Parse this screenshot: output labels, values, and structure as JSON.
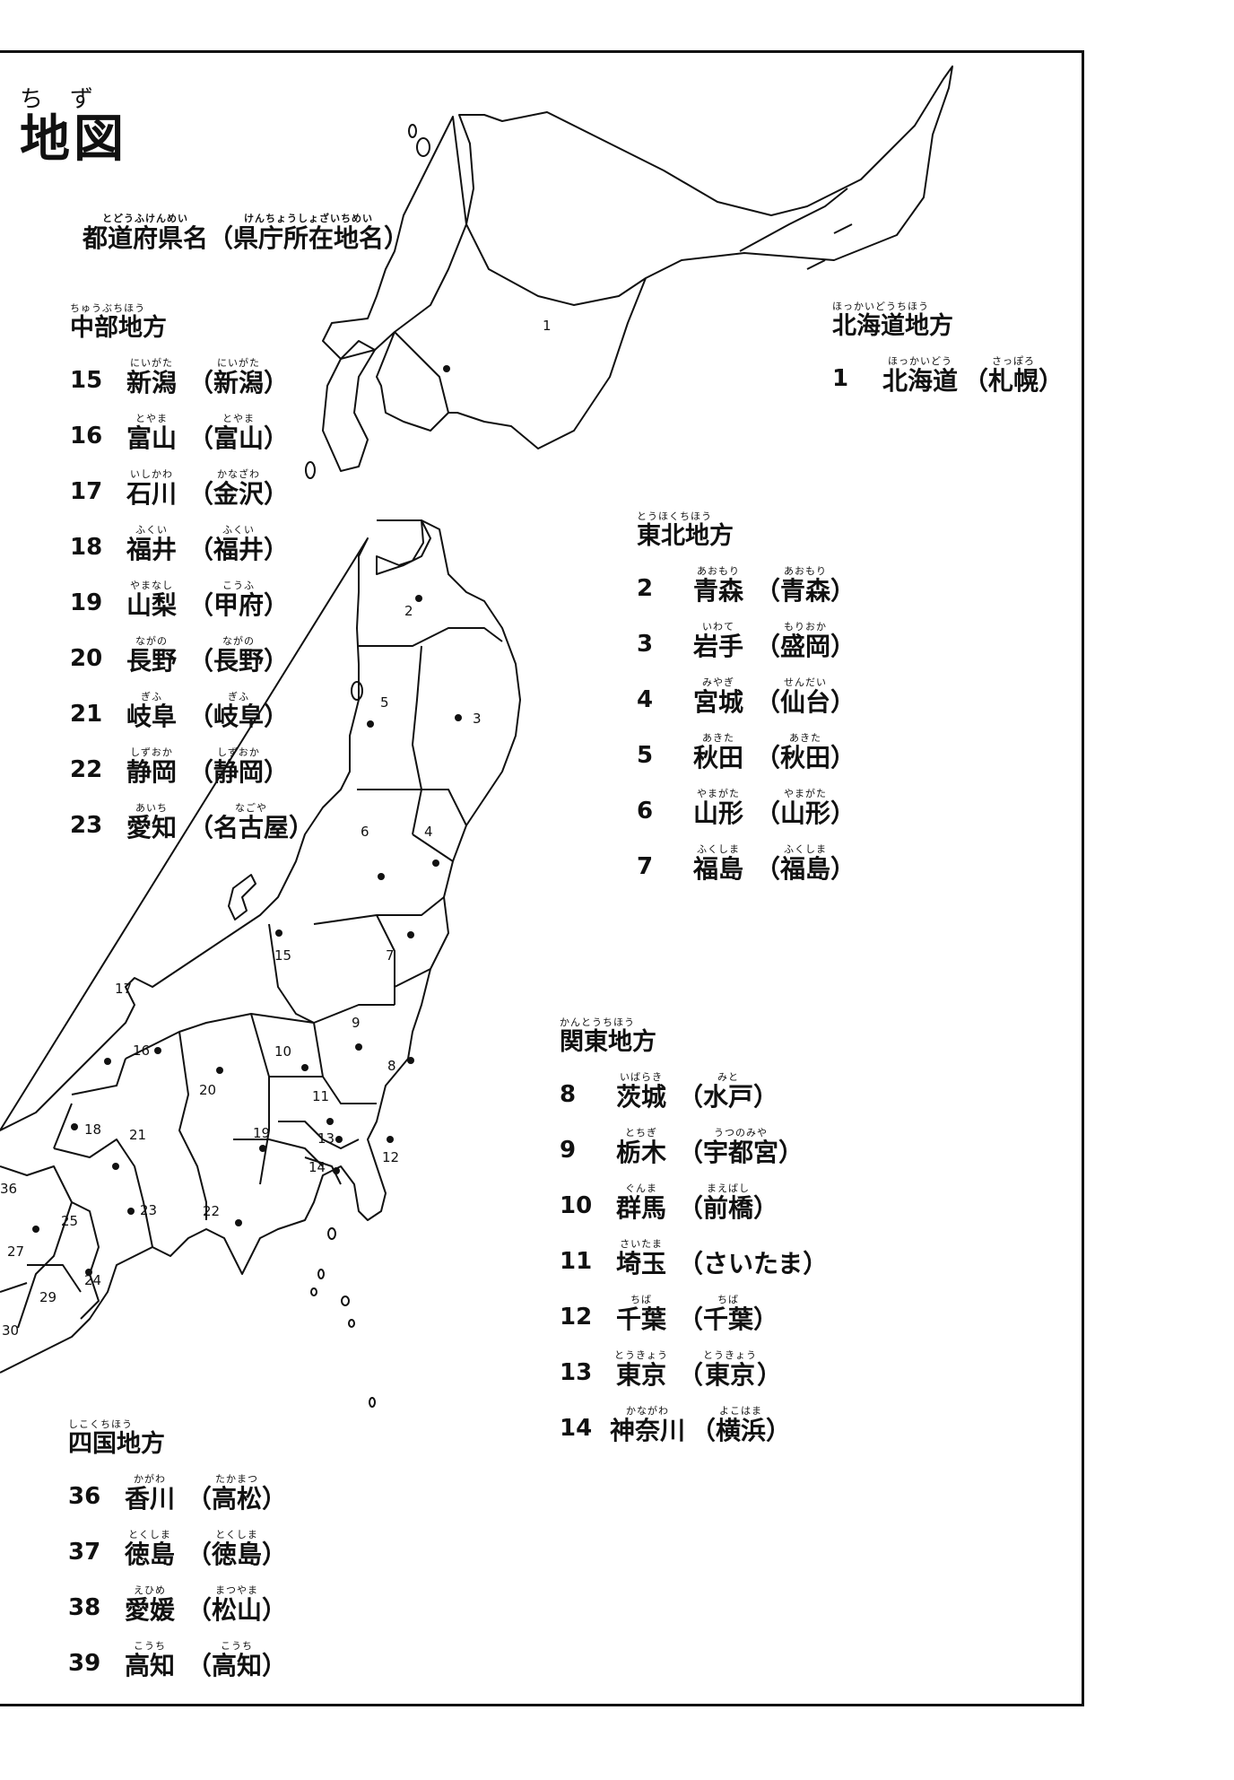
{
  "title": {
    "ruby": "ちず",
    "text": "地図"
  },
  "subtitle": {
    "part1": {
      "ruby": "とどうふけんめい",
      "text": "都道府県名"
    },
    "open": "（",
    "part2": {
      "ruby": "けんちょうしょざいちめい",
      "text": "県庁所在地名"
    },
    "close": "）"
  },
  "regions": [
    {
      "id": "chubu",
      "heading": {
        "ruby": "ちゅうぶちほう",
        "text": "中部地方"
      },
      "entries": [
        {
          "num": "15",
          "name": "新潟",
          "name_ruby": "にいがた",
          "cap": "新潟",
          "cap_ruby": "にいがた"
        },
        {
          "num": "16",
          "name": "富山",
          "name_ruby": "とやま",
          "cap": "富山",
          "cap_ruby": "とやま"
        },
        {
          "num": "17",
          "name": "石川",
          "name_ruby": "いしかわ",
          "cap": "金沢",
          "cap_ruby": "かなざわ"
        },
        {
          "num": "18",
          "name": "福井",
          "name_ruby": "ふくい",
          "cap": "福井",
          "cap_ruby": "ふくい"
        },
        {
          "num": "19",
          "name": "山梨",
          "name_ruby": "やまなし",
          "cap": "甲府",
          "cap_ruby": "こうふ"
        },
        {
          "num": "20",
          "name": "長野",
          "name_ruby": "ながの",
          "cap": "長野",
          "cap_ruby": "ながの"
        },
        {
          "num": "21",
          "name": "岐阜",
          "name_ruby": "ぎふ",
          "cap": "岐阜",
          "cap_ruby": "ぎふ"
        },
        {
          "num": "22",
          "name": "静岡",
          "name_ruby": "しずおか",
          "cap": "静岡",
          "cap_ruby": "しずおか"
        },
        {
          "num": "23",
          "name": "愛知",
          "name_ruby": "あいち",
          "cap": "名古屋",
          "cap_ruby": "なごや"
        }
      ]
    },
    {
      "id": "hokkaido",
      "heading": {
        "ruby": "ほっかいどうちほう",
        "text": "北海道地方"
      },
      "entries": [
        {
          "num": "1",
          "name": "北海道",
          "name_ruby": "ほっかいどう",
          "cap": "札幌",
          "cap_ruby": "さっぽろ"
        }
      ]
    },
    {
      "id": "tohoku",
      "heading": {
        "ruby": "とうほくちほう",
        "text": "東北地方"
      },
      "entries": [
        {
          "num": "2",
          "name": "青森",
          "name_ruby": "あおもり",
          "cap": "青森",
          "cap_ruby": "あおもり"
        },
        {
          "num": "3",
          "name": "岩手",
          "name_ruby": "いわて",
          "cap": "盛岡",
          "cap_ruby": "もりおか"
        },
        {
          "num": "4",
          "name": "宮城",
          "name_ruby": "みやぎ",
          "cap": "仙台",
          "cap_ruby": "せんだい"
        },
        {
          "num": "5",
          "name": "秋田",
          "name_ruby": "あきた",
          "cap": "秋田",
          "cap_ruby": "あきた"
        },
        {
          "num": "6",
          "name": "山形",
          "name_ruby": "やまがた",
          "cap": "山形",
          "cap_ruby": "やまがた"
        },
        {
          "num": "7",
          "name": "福島",
          "name_ruby": "ふくしま",
          "cap": "福島",
          "cap_ruby": "ふくしま"
        }
      ]
    },
    {
      "id": "kanto",
      "heading": {
        "ruby": "かんとうちほう",
        "text": "関東地方"
      },
      "entries": [
        {
          "num": "8",
          "name": "茨城",
          "name_ruby": "いばらき",
          "cap": "水戸",
          "cap_ruby": "みと"
        },
        {
          "num": "9",
          "name": "栃木",
          "name_ruby": "とちぎ",
          "cap": "宇都宮",
          "cap_ruby": "うつのみや"
        },
        {
          "num": "10",
          "name": "群馬",
          "name_ruby": "ぐんま",
          "cap": "前橋",
          "cap_ruby": "まえばし"
        },
        {
          "num": "11",
          "name": "埼玉",
          "name_ruby": "さいたま",
          "cap": "さいたま",
          "cap_ruby": ""
        },
        {
          "num": "12",
          "name": "千葉",
          "name_ruby": "ちば",
          "cap": "千葉",
          "cap_ruby": "ちば"
        },
        {
          "num": "13",
          "name": "東京",
          "name_ruby": "とうきょう",
          "cap": "東京",
          "cap_ruby": "とうきょう"
        },
        {
          "num": "14",
          "name": "神奈川",
          "name_ruby": "かながわ",
          "cap": "横浜",
          "cap_ruby": "よこはま"
        }
      ]
    },
    {
      "id": "shikoku",
      "heading": {
        "ruby": "しこくちほう",
        "text": "四国地方"
      },
      "entries": [
        {
          "num": "36",
          "name": "香川",
          "name_ruby": "かがわ",
          "cap": "高松",
          "cap_ruby": "たかまつ"
        },
        {
          "num": "37",
          "name": "徳島",
          "name_ruby": "とくしま",
          "cap": "徳島",
          "cap_ruby": "とくしま"
        },
        {
          "num": "38",
          "name": "愛媛",
          "name_ruby": "えひめ",
          "cap": "松山",
          "cap_ruby": "まつやま"
        },
        {
          "num": "39",
          "name": "高知",
          "name_ruby": "こうち",
          "cap": "高知",
          "cap_ruby": "こうち"
        }
      ]
    }
  ],
  "paren_open": "（",
  "paren_close": "）",
  "map_labels": [
    "1",
    "2",
    "3",
    "4",
    "5",
    "6",
    "7",
    "8",
    "9",
    "10",
    "11",
    "12",
    "13",
    "14",
    "15",
    "16",
    "17",
    "18",
    "19",
    "20",
    "21",
    "22",
    "23",
    "24",
    "25",
    "27",
    "29",
    "30",
    "36"
  ]
}
